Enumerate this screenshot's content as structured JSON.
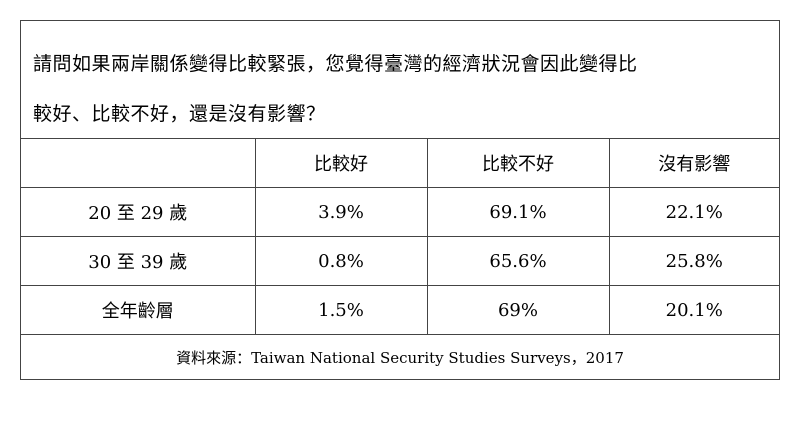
{
  "question": {
    "line1": "請問如果兩岸關係變得比較緊張，您覺得臺灣的經濟狀況會因此變得比",
    "line2": "較好、比較不好，還是沒有影響？"
  },
  "table": {
    "headers": [
      "",
      "比較好",
      "比較不好",
      "沒有影響"
    ],
    "rows": [
      {
        "label": "20 至 29 歲",
        "better": "3.9%",
        "worse": "69.1%",
        "no_effect": "22.1%"
      },
      {
        "label": "30 至 39 歲",
        "better": "0.8%",
        "worse": "65.6%",
        "no_effect": "25.8%"
      },
      {
        "label": "全年齡層",
        "better": "1.5%",
        "worse": "69%",
        "no_effect": "20.1%"
      }
    ]
  },
  "source": "資料來源：Taiwan National Security Studies Surveys，2017"
}
